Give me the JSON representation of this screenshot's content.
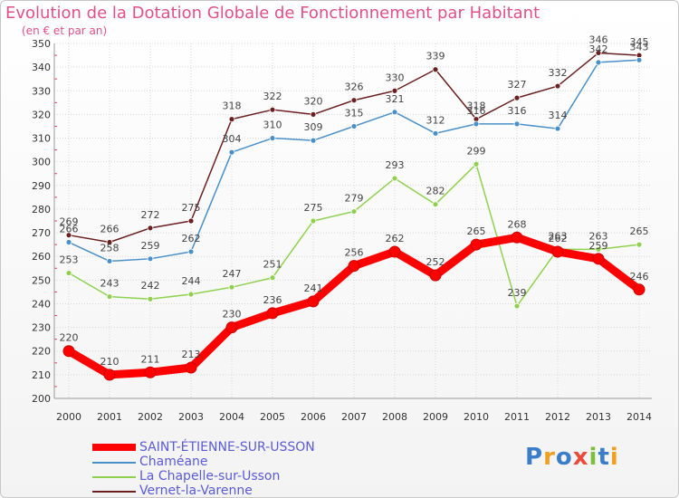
{
  "chart_data": {
    "type": "line",
    "title": "Evolution de la Dotation Globale de Fonctionnement par Habitant",
    "subtitle": "(en € et par an)",
    "xlabel": "",
    "ylabel": "",
    "categories": [
      "2000",
      "2001",
      "2002",
      "2003",
      "2004",
      "2005",
      "2006",
      "2007",
      "2008",
      "2009",
      "2010",
      "2011",
      "2012",
      "2013",
      "2014"
    ],
    "ylim": [
      200,
      350
    ],
    "yticks": [
      200,
      210,
      220,
      230,
      240,
      250,
      260,
      270,
      280,
      290,
      300,
      310,
      320,
      330,
      340,
      350
    ],
    "grid": true,
    "series": [
      {
        "name": "Vernet-la-Varenne",
        "color": "#6b1f1f",
        "values": [
          269,
          266,
          272,
          275,
          318,
          322,
          320,
          326,
          330,
          339,
          318,
          327,
          332,
          346,
          345
        ]
      },
      {
        "name": "Chaméane",
        "color": "#4a90c8",
        "values": [
          266,
          258,
          259,
          262,
          304,
          310,
          309,
          315,
          321,
          312,
          316,
          316,
          314,
          342,
          343
        ]
      },
      {
        "name": "La Chapelle-sur-Usson",
        "color": "#8fd14f",
        "values": [
          253,
          243,
          242,
          244,
          247,
          251,
          275,
          279,
          293,
          282,
          299,
          239,
          263,
          263,
          265
        ]
      },
      {
        "name": "SAINT-ÉTIENNE-SUR-USSON",
        "color": "#ff0000",
        "values": [
          220,
          210,
          211,
          213,
          230,
          236,
          241,
          256,
          262,
          252,
          265,
          268,
          262,
          259,
          246
        ]
      }
    ]
  },
  "legend": [
    {
      "label": "SAINT-ÉTIENNE-SUR-USSON",
      "color": "#ff0000",
      "text_color": "#5b5bd6",
      "thick": true
    },
    {
      "label": "Chaméane",
      "color": "#4a90c8",
      "text_color": "#5b5bd6",
      "thick": false
    },
    {
      "label": "La Chapelle-sur-Usson",
      "color": "#8fd14f",
      "text_color": "#5b5bd6",
      "thick": false
    },
    {
      "label": "Vernet-la-Varenne",
      "color": "#6b1f1f",
      "text_color": "#5b5bd6",
      "thick": false
    }
  ],
  "logo": {
    "text": "Proxiti"
  }
}
